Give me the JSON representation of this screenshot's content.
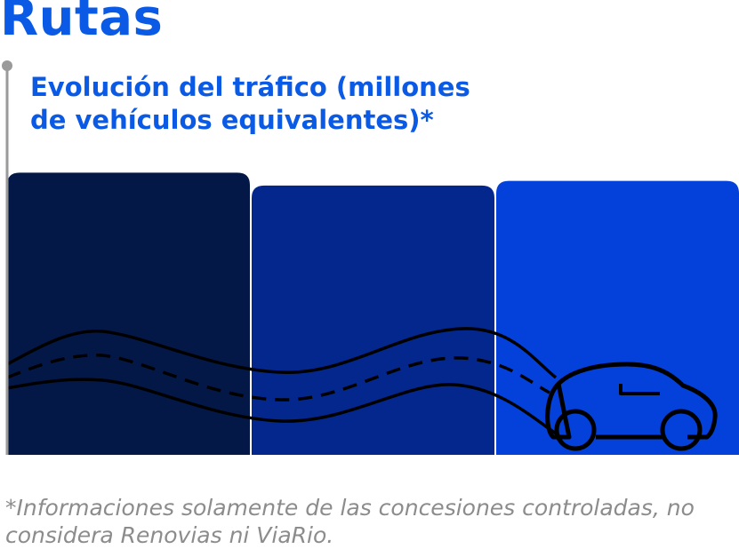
{
  "header": {
    "title": "Rutas"
  },
  "chart_data": {
    "type": "bar",
    "title": "Evolución del tráfico (millones de vehículos equivalentes)*",
    "categories": [
      "",
      "",
      ""
    ],
    "values": [
      308,
      294,
      299
    ],
    "colors": [
      "#041848",
      "#03278d",
      "#0440da"
    ],
    "ylim": [
      0,
      320
    ],
    "grid": false,
    "legend": "none"
  },
  "footnote": {
    "text": "*Informaciones solamente de las concesiones controladas, no considera Renovias ni ViaRio."
  },
  "colors": {
    "accent": "#0a5ae6",
    "axis": "#9a9a9a",
    "road": "#000000",
    "footnote": "#8c8c8c"
  },
  "icons": {
    "car": "car-icon",
    "road": "road-icon"
  }
}
